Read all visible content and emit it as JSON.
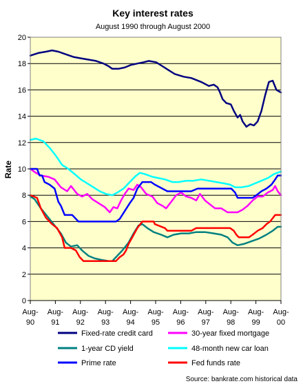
{
  "chart_data": {
    "type": "line",
    "title": "Key interest rates",
    "subtitle": "August 1990 through August 2000",
    "ylabel": "Rate",
    "xlabel": "",
    "ylim": [
      0,
      20
    ],
    "yticks": [
      0,
      2,
      4,
      6,
      8,
      10,
      12,
      14,
      16,
      18,
      20
    ],
    "xlim": [
      1990.58,
      2000.58
    ],
    "xtick_labels": [
      {
        "x": 1990.58,
        "line1": "Aug-",
        "line2": "90"
      },
      {
        "x": 1991.58,
        "line1": "Aug-",
        "line2": "91"
      },
      {
        "x": 1992.58,
        "line1": "Aug-",
        "line2": "92"
      },
      {
        "x": 1993.58,
        "line1": "Aug-",
        "line2": "93"
      },
      {
        "x": 1994.58,
        "line1": "Aug-",
        "line2": "94"
      },
      {
        "x": 1995.58,
        "line1": "Aug-",
        "line2": "95"
      },
      {
        "x": 1996.58,
        "line1": "Aug-",
        "line2": "96"
      },
      {
        "x": 1997.58,
        "line1": "Aug-",
        "line2": "97"
      },
      {
        "x": 1998.58,
        "line1": "Aug-",
        "line2": "98"
      },
      {
        "x": 1999.58,
        "line1": "Aug-",
        "line2": "99"
      },
      {
        "x": 2000.58,
        "line1": "Aug-",
        "line2": "00"
      }
    ],
    "grid": "horizontal",
    "plot_background": "#ffffcc",
    "legend_position": "bottom",
    "source": "Source: bankrate.com historical data",
    "series": [
      {
        "name": "Fixed-rate credit card",
        "color": "#000080",
        "points": [
          [
            1990.58,
            18.6
          ],
          [
            1990.9,
            18.8
          ],
          [
            1991.2,
            18.9
          ],
          [
            1991.45,
            19.0
          ],
          [
            1991.7,
            18.9
          ],
          [
            1992.0,
            18.7
          ],
          [
            1992.3,
            18.5
          ],
          [
            1992.6,
            18.4
          ],
          [
            1992.9,
            18.3
          ],
          [
            1993.2,
            18.2
          ],
          [
            1993.5,
            18.0
          ],
          [
            1993.7,
            17.8
          ],
          [
            1993.85,
            17.6
          ],
          [
            1994.1,
            17.6
          ],
          [
            1994.35,
            17.7
          ],
          [
            1994.6,
            17.9
          ],
          [
            1994.85,
            18.0
          ],
          [
            1995.1,
            18.1
          ],
          [
            1995.3,
            18.2
          ],
          [
            1995.6,
            18.1
          ],
          [
            1995.85,
            17.8
          ],
          [
            1996.1,
            17.5
          ],
          [
            1996.35,
            17.2
          ],
          [
            1996.7,
            17.0
          ],
          [
            1997.0,
            16.9
          ],
          [
            1997.4,
            16.6
          ],
          [
            1997.7,
            16.3
          ],
          [
            1997.9,
            16.4
          ],
          [
            1998.05,
            16.2
          ],
          [
            1998.15,
            15.8
          ],
          [
            1998.25,
            15.3
          ],
          [
            1998.4,
            15.0
          ],
          [
            1998.58,
            14.9
          ],
          [
            1998.7,
            14.4
          ],
          [
            1998.85,
            13.9
          ],
          [
            1998.95,
            14.1
          ],
          [
            1999.05,
            13.6
          ],
          [
            1999.2,
            13.2
          ],
          [
            1999.35,
            13.4
          ],
          [
            1999.5,
            13.3
          ],
          [
            1999.65,
            13.6
          ],
          [
            1999.8,
            14.4
          ],
          [
            1999.95,
            15.6
          ],
          [
            2000.1,
            16.6
          ],
          [
            2000.25,
            16.7
          ],
          [
            2000.4,
            16.0
          ],
          [
            2000.58,
            15.8
          ]
        ]
      },
      {
        "name": "30-year fixed mortgage",
        "color": "#ff00ff",
        "points": [
          [
            1990.58,
            10.0
          ],
          [
            1990.8,
            9.7
          ],
          [
            1991.0,
            9.5
          ],
          [
            1991.3,
            9.4
          ],
          [
            1991.55,
            9.2
          ],
          [
            1991.8,
            8.6
          ],
          [
            1992.05,
            8.3
          ],
          [
            1992.2,
            8.7
          ],
          [
            1992.45,
            8.1
          ],
          [
            1992.65,
            7.9
          ],
          [
            1992.85,
            8.1
          ],
          [
            1993.05,
            7.7
          ],
          [
            1993.3,
            7.4
          ],
          [
            1993.55,
            7.1
          ],
          [
            1993.75,
            6.7
          ],
          [
            1993.9,
            7.1
          ],
          [
            1994.05,
            7.0
          ],
          [
            1994.2,
            7.6
          ],
          [
            1994.35,
            8.1
          ],
          [
            1994.5,
            8.5
          ],
          [
            1994.7,
            8.4
          ],
          [
            1994.85,
            8.8
          ],
          [
            1995.0,
            8.6
          ],
          [
            1995.2,
            8.1
          ],
          [
            1995.45,
            7.9
          ],
          [
            1995.65,
            7.4
          ],
          [
            1995.85,
            7.2
          ],
          [
            1996.0,
            7.0
          ],
          [
            1996.2,
            7.5
          ],
          [
            1996.4,
            8.0
          ],
          [
            1996.6,
            8.2
          ],
          [
            1996.8,
            7.9
          ],
          [
            1997.0,
            7.8
          ],
          [
            1997.2,
            7.6
          ],
          [
            1997.35,
            8.1
          ],
          [
            1997.55,
            7.6
          ],
          [
            1997.75,
            7.3
          ],
          [
            1997.95,
            7.0
          ],
          [
            1998.2,
            7.0
          ],
          [
            1998.45,
            6.7
          ],
          [
            1998.65,
            6.7
          ],
          [
            1998.85,
            6.7
          ],
          [
            1999.05,
            6.9
          ],
          [
            1999.25,
            7.2
          ],
          [
            1999.45,
            7.6
          ],
          [
            1999.65,
            7.9
          ],
          [
            1999.85,
            7.9
          ],
          [
            2000.05,
            8.2
          ],
          [
            2000.25,
            8.4
          ],
          [
            2000.35,
            8.7
          ],
          [
            2000.45,
            8.3
          ],
          [
            2000.58,
            8.0
          ]
        ]
      },
      {
        "name": "1-year CD yield",
        "color": "#008080",
        "points": [
          [
            1990.58,
            7.9
          ],
          [
            1990.75,
            7.7
          ],
          [
            1991.0,
            7.0
          ],
          [
            1991.3,
            6.3
          ],
          [
            1991.55,
            5.7
          ],
          [
            1991.8,
            5.1
          ],
          [
            1992.0,
            4.4
          ],
          [
            1992.2,
            4.1
          ],
          [
            1992.45,
            4.2
          ],
          [
            1992.65,
            3.8
          ],
          [
            1992.9,
            3.4
          ],
          [
            1993.15,
            3.2
          ],
          [
            1993.4,
            3.1
          ],
          [
            1993.7,
            3.0
          ],
          [
            1993.85,
            3.0
          ],
          [
            1994.0,
            3.3
          ],
          [
            1994.25,
            3.8
          ],
          [
            1994.5,
            4.4
          ],
          [
            1994.7,
            5.1
          ],
          [
            1994.9,
            5.7
          ],
          [
            1995.05,
            5.8
          ],
          [
            1995.25,
            5.5
          ],
          [
            1995.5,
            5.2
          ],
          [
            1995.8,
            5.0
          ],
          [
            1996.05,
            4.8
          ],
          [
            1996.3,
            5.0
          ],
          [
            1996.6,
            5.1
          ],
          [
            1996.9,
            5.1
          ],
          [
            1997.2,
            5.2
          ],
          [
            1997.55,
            5.2
          ],
          [
            1997.9,
            5.1
          ],
          [
            1998.2,
            5.0
          ],
          [
            1998.45,
            4.8
          ],
          [
            1998.65,
            4.4
          ],
          [
            1998.85,
            4.2
          ],
          [
            1999.1,
            4.3
          ],
          [
            1999.4,
            4.5
          ],
          [
            1999.7,
            4.7
          ],
          [
            2000.0,
            5.0
          ],
          [
            2000.25,
            5.3
          ],
          [
            2000.45,
            5.6
          ],
          [
            2000.58,
            5.6
          ]
        ]
      },
      {
        "name": "48-month new car loan",
        "color": "#00ffff",
        "points": [
          [
            1990.58,
            12.2
          ],
          [
            1990.8,
            12.3
          ],
          [
            1991.1,
            12.1
          ],
          [
            1991.35,
            11.6
          ],
          [
            1991.6,
            11.0
          ],
          [
            1991.85,
            10.3
          ],
          [
            1992.1,
            10.0
          ],
          [
            1992.35,
            9.6
          ],
          [
            1992.6,
            9.2
          ],
          [
            1992.85,
            8.9
          ],
          [
            1993.1,
            8.6
          ],
          [
            1993.35,
            8.3
          ],
          [
            1993.6,
            8.1
          ],
          [
            1993.85,
            8.0
          ],
          [
            1994.05,
            8.2
          ],
          [
            1994.3,
            8.5
          ],
          [
            1994.55,
            9.0
          ],
          [
            1994.75,
            9.4
          ],
          [
            1994.95,
            9.7
          ],
          [
            1995.15,
            9.6
          ],
          [
            1995.45,
            9.4
          ],
          [
            1995.7,
            9.3
          ],
          [
            1995.95,
            9.2
          ],
          [
            1996.25,
            9.0
          ],
          [
            1996.5,
            9.0
          ],
          [
            1996.8,
            9.1
          ],
          [
            1997.1,
            9.1
          ],
          [
            1997.4,
            9.2
          ],
          [
            1997.7,
            9.1
          ],
          [
            1998.0,
            9.0
          ],
          [
            1998.3,
            8.9
          ],
          [
            1998.55,
            8.8
          ],
          [
            1998.75,
            8.6
          ],
          [
            1999.0,
            8.6
          ],
          [
            1999.3,
            8.7
          ],
          [
            1999.55,
            8.9
          ],
          [
            1999.8,
            9.1
          ],
          [
            2000.05,
            9.3
          ],
          [
            2000.3,
            9.6
          ],
          [
            2000.58,
            9.8
          ]
        ]
      },
      {
        "name": "Prime rate",
        "color": "#0000ff",
        "points": [
          [
            1990.58,
            10.0
          ],
          [
            1990.85,
            10.0
          ],
          [
            1990.95,
            9.5
          ],
          [
            1991.05,
            9.5
          ],
          [
            1991.15,
            9.0
          ],
          [
            1991.35,
            8.8
          ],
          [
            1991.55,
            8.5
          ],
          [
            1991.7,
            7.5
          ],
          [
            1991.8,
            7.2
          ],
          [
            1991.95,
            6.5
          ],
          [
            1992.25,
            6.5
          ],
          [
            1992.5,
            6.0
          ],
          [
            1993.0,
            6.0
          ],
          [
            1993.5,
            6.0
          ],
          [
            1994.0,
            6.0
          ],
          [
            1994.15,
            6.2
          ],
          [
            1994.35,
            6.8
          ],
          [
            1994.55,
            7.4
          ],
          [
            1994.7,
            7.8
          ],
          [
            1994.85,
            8.5
          ],
          [
            1995.05,
            9.0
          ],
          [
            1995.4,
            9.0
          ],
          [
            1995.55,
            8.8
          ],
          [
            1995.85,
            8.5
          ],
          [
            1996.05,
            8.3
          ],
          [
            1996.5,
            8.3
          ],
          [
            1997.0,
            8.3
          ],
          [
            1997.25,
            8.5
          ],
          [
            1997.6,
            8.5
          ],
          [
            1998.0,
            8.5
          ],
          [
            1998.6,
            8.5
          ],
          [
            1998.75,
            8.2
          ],
          [
            1998.85,
            7.8
          ],
          [
            1999.1,
            7.8
          ],
          [
            1999.45,
            7.8
          ],
          [
            1999.6,
            8.0
          ],
          [
            1999.8,
            8.3
          ],
          [
            2000.0,
            8.5
          ],
          [
            2000.2,
            8.8
          ],
          [
            2000.35,
            9.2
          ],
          [
            2000.45,
            9.5
          ],
          [
            2000.58,
            9.5
          ]
        ]
      },
      {
        "name": "Fed funds rate",
        "color": "#ff0000",
        "points": [
          [
            1990.58,
            8.0
          ],
          [
            1990.85,
            7.8
          ],
          [
            1991.0,
            7.0
          ],
          [
            1991.2,
            6.3
          ],
          [
            1991.45,
            5.8
          ],
          [
            1991.65,
            5.5
          ],
          [
            1991.85,
            4.8
          ],
          [
            1991.95,
            4.0
          ],
          [
            1992.2,
            4.0
          ],
          [
            1992.4,
            3.8
          ],
          [
            1992.55,
            3.3
          ],
          [
            1992.7,
            3.0
          ],
          [
            1993.0,
            3.0
          ],
          [
            1993.5,
            3.0
          ],
          [
            1994.0,
            3.0
          ],
          [
            1994.15,
            3.3
          ],
          [
            1994.3,
            3.5
          ],
          [
            1994.4,
            3.8
          ],
          [
            1994.5,
            4.3
          ],
          [
            1994.65,
            4.8
          ],
          [
            1994.85,
            5.5
          ],
          [
            1995.05,
            6.0
          ],
          [
            1995.5,
            6.0
          ],
          [
            1995.55,
            5.8
          ],
          [
            1995.95,
            5.5
          ],
          [
            1996.05,
            5.3
          ],
          [
            1996.5,
            5.3
          ],
          [
            1997.0,
            5.3
          ],
          [
            1997.2,
            5.5
          ],
          [
            1997.6,
            5.5
          ],
          [
            1998.0,
            5.5
          ],
          [
            1998.55,
            5.5
          ],
          [
            1998.7,
            5.3
          ],
          [
            1998.8,
            5.0
          ],
          [
            1998.9,
            4.8
          ],
          [
            1999.3,
            4.8
          ],
          [
            1999.45,
            5.0
          ],
          [
            1999.65,
            5.3
          ],
          [
            1999.85,
            5.5
          ],
          [
            2000.0,
            5.8
          ],
          [
            2000.15,
            6.0
          ],
          [
            2000.35,
            6.5
          ],
          [
            2000.58,
            6.5
          ]
        ]
      }
    ]
  }
}
